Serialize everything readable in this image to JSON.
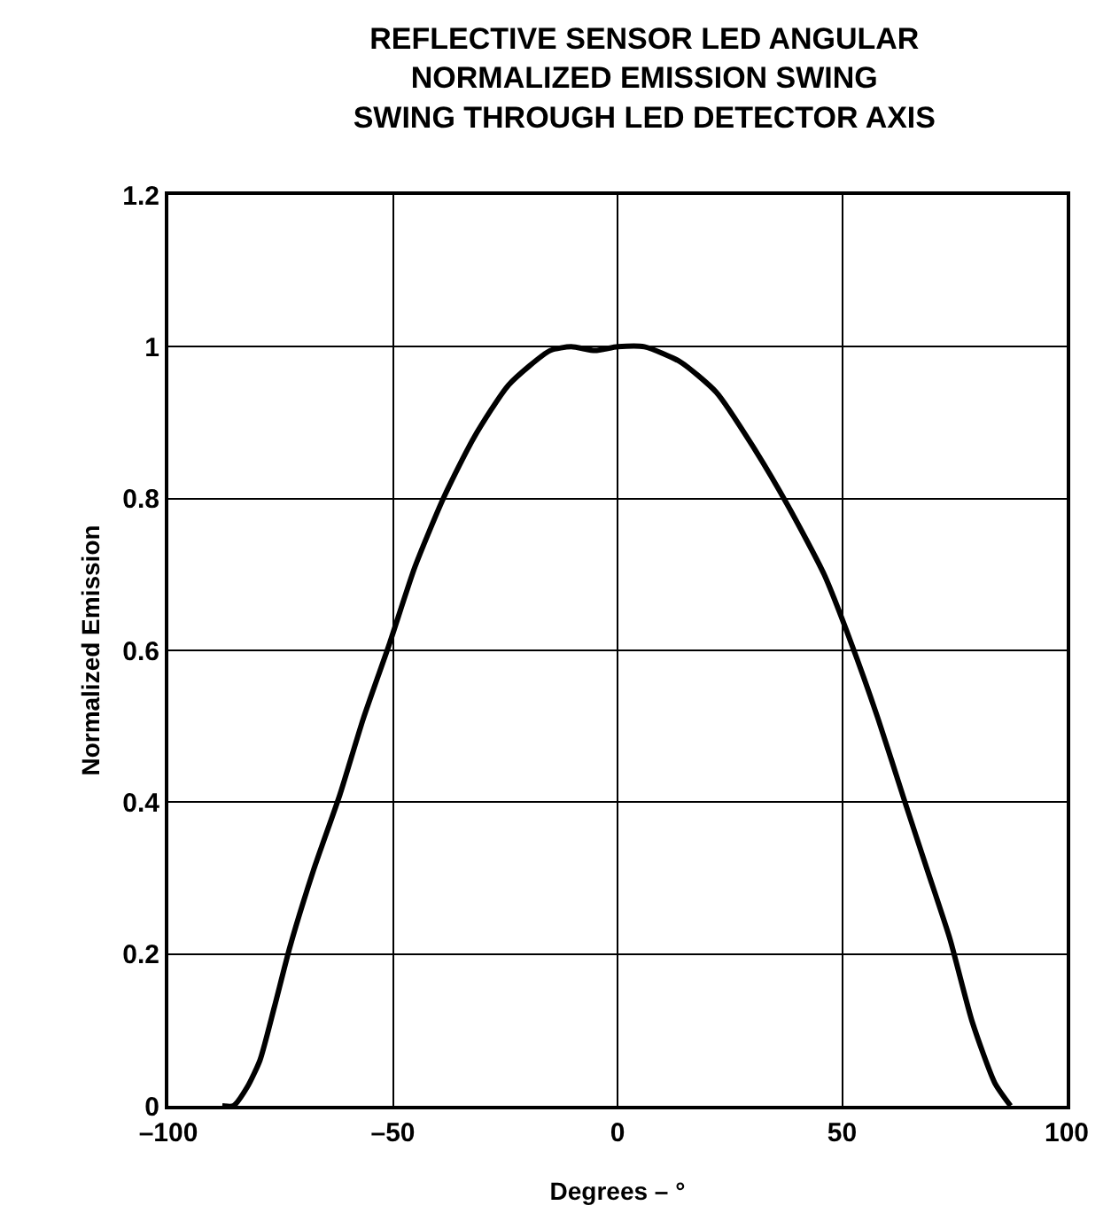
{
  "chart_data": {
    "type": "line",
    "title": "REFLECTIVE SENSOR LED ANGULAR\nNORMALIZED EMISSION SWING\nSWING THROUGH LED DETECTOR AXIS",
    "xlabel": "Degrees – °",
    "ylabel": "Normalized Emission",
    "x": [
      -88,
      -85.5,
      -82.4,
      -79.6,
      -76.4,
      -72.9,
      -67.7,
      -61.8,
      -56.6,
      -50.7,
      -45.1,
      -38.8,
      -32,
      -24.2,
      -15,
      -10.3,
      -5,
      0,
      6,
      14,
      22,
      30,
      38,
      46,
      52,
      58,
      64,
      69,
      74,
      79,
      84,
      87.5
    ],
    "series": [
      {
        "color": "#000000",
        "values": [
          0,
          0,
          0.025,
          0.06,
          0.13,
          0.21,
          0.31,
          0.41,
          0.51,
          0.61,
          0.71,
          0.8,
          0.88,
          0.95,
          0.995,
          1,
          0.995,
          1,
          1,
          0.98,
          0.94,
          0.87,
          0.79,
          0.7,
          0.61,
          0.51,
          0.4,
          0.31,
          0.22,
          0.11,
          0.03,
          0
        ]
      }
    ],
    "xlim": [
      -100,
      100
    ],
    "xticks": [
      {
        "value": -100,
        "label": "–100"
      },
      {
        "value": -50,
        "label": "–50"
      },
      0,
      50,
      100
    ],
    "ylim": [
      0,
      1.2
    ],
    "yticks": [
      0,
      0.2,
      0.4,
      0.6,
      0.8,
      1,
      1.2
    ],
    "grid": true,
    "legend": false,
    "marker": "none",
    "line_style": "solid"
  }
}
